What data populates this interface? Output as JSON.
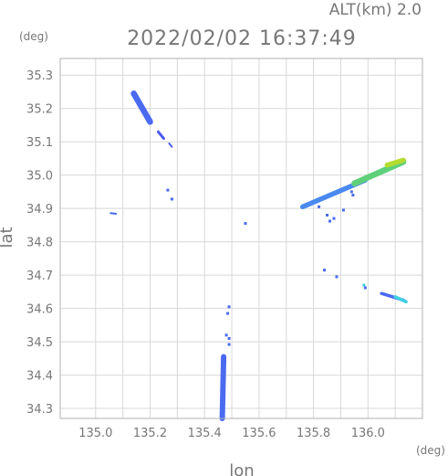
{
  "header": {
    "altitude_label": "ALT(km) 2.0",
    "timestamp": "2022/02/02 16:37:49"
  },
  "chart_data": {
    "type": "scatter",
    "title": "2022/02/02 16:37:49",
    "subtitle": "ALT(km) 2.0",
    "xlabel": "lon",
    "ylabel": "lat",
    "x_unit": "(deg)",
    "y_unit": "(deg)",
    "xlim": [
      134.87,
      136.2
    ],
    "ylim": [
      34.27,
      35.35
    ],
    "x_ticks": [
      135.0,
      135.1,
      135.2,
      135.3,
      135.4,
      135.5,
      135.6,
      135.7,
      135.8,
      135.9,
      136.0,
      136.1
    ],
    "x_tick_labels": [
      "135.0",
      "135.2",
      "135.4",
      "135.6",
      "135.8",
      "136.0"
    ],
    "y_ticks": [
      34.3,
      34.4,
      34.5,
      34.6,
      34.7,
      34.8,
      34.9,
      35.0,
      35.1,
      35.2,
      35.3
    ],
    "grid": true,
    "echoes": [
      {
        "lon1": 135.14,
        "lat1": 35.245,
        "lon2": 135.2,
        "lat2": 35.16,
        "width": 0.022,
        "color": "#4a6af0"
      },
      {
        "lon1": 135.23,
        "lat1": 35.13,
        "lon2": 135.25,
        "lat2": 35.11,
        "width": 0.01,
        "color": "#4a5af0"
      },
      {
        "lon1": 135.27,
        "lat1": 35.095,
        "lon2": 135.28,
        "lat2": 35.085,
        "width": 0.006,
        "color": "#4a5af0"
      },
      {
        "lon1": 135.76,
        "lat1": 34.905,
        "lon2": 135.99,
        "lat2": 34.985,
        "width": 0.018,
        "color": "#4a8af0"
      },
      {
        "lon1": 135.95,
        "lat1": 34.975,
        "lon2": 136.13,
        "lat2": 35.04,
        "width": 0.022,
        "color": "#5fd07a"
      },
      {
        "lon1": 136.07,
        "lat1": 35.03,
        "lon2": 136.13,
        "lat2": 35.045,
        "width": 0.018,
        "color": "#b4dc30"
      },
      {
        "lon1": 135.47,
        "lat1": 34.455,
        "lon2": 135.465,
        "lat2": 34.27,
        "width": 0.02,
        "color": "#4a6af0"
      },
      {
        "lon1": 136.05,
        "lat1": 34.645,
        "lon2": 136.13,
        "lat2": 34.625,
        "width": 0.012,
        "color": "#4a6af0"
      },
      {
        "lon1": 136.1,
        "lat1": 34.635,
        "lon2": 136.14,
        "lat2": 34.62,
        "width": 0.012,
        "color": "#40d0e0"
      },
      {
        "lon1": 135.055,
        "lat1": 34.886,
        "lon2": 135.075,
        "lat2": 34.884,
        "width": 0.006,
        "color": "#4a6af0"
      }
    ],
    "specks": [
      {
        "lon": 135.265,
        "lat": 34.955,
        "color": "#4a6af0"
      },
      {
        "lon": 135.28,
        "lat": 34.928,
        "color": "#4a6af0"
      },
      {
        "lon": 135.55,
        "lat": 34.855,
        "color": "#4a6af0"
      },
      {
        "lon": 135.82,
        "lat": 34.905,
        "color": "#4a6af0"
      },
      {
        "lon": 135.85,
        "lat": 34.88,
        "color": "#4a6af0"
      },
      {
        "lon": 135.86,
        "lat": 34.862,
        "color": "#4a6af0"
      },
      {
        "lon": 135.875,
        "lat": 34.87,
        "color": "#4a6af0"
      },
      {
        "lon": 135.91,
        "lat": 34.895,
        "color": "#4a6af0"
      },
      {
        "lon": 135.945,
        "lat": 34.94,
        "color": "#4a6af0"
      },
      {
        "lon": 135.94,
        "lat": 34.95,
        "color": "#4a6af0"
      },
      {
        "lon": 135.84,
        "lat": 34.715,
        "color": "#4a6af0"
      },
      {
        "lon": 135.885,
        "lat": 34.695,
        "color": "#4a6af0"
      },
      {
        "lon": 135.985,
        "lat": 34.67,
        "color": "#40d0e0"
      },
      {
        "lon": 135.99,
        "lat": 34.662,
        "color": "#4a6af0"
      },
      {
        "lon": 135.49,
        "lat": 34.605,
        "color": "#4a6af0"
      },
      {
        "lon": 135.485,
        "lat": 34.585,
        "color": "#4a6af0"
      },
      {
        "lon": 135.48,
        "lat": 34.52,
        "color": "#4a6af0"
      },
      {
        "lon": 135.49,
        "lat": 34.51,
        "color": "#4a6af0"
      },
      {
        "lon": 135.49,
        "lat": 34.492,
        "color": "#4a6af0"
      }
    ]
  }
}
